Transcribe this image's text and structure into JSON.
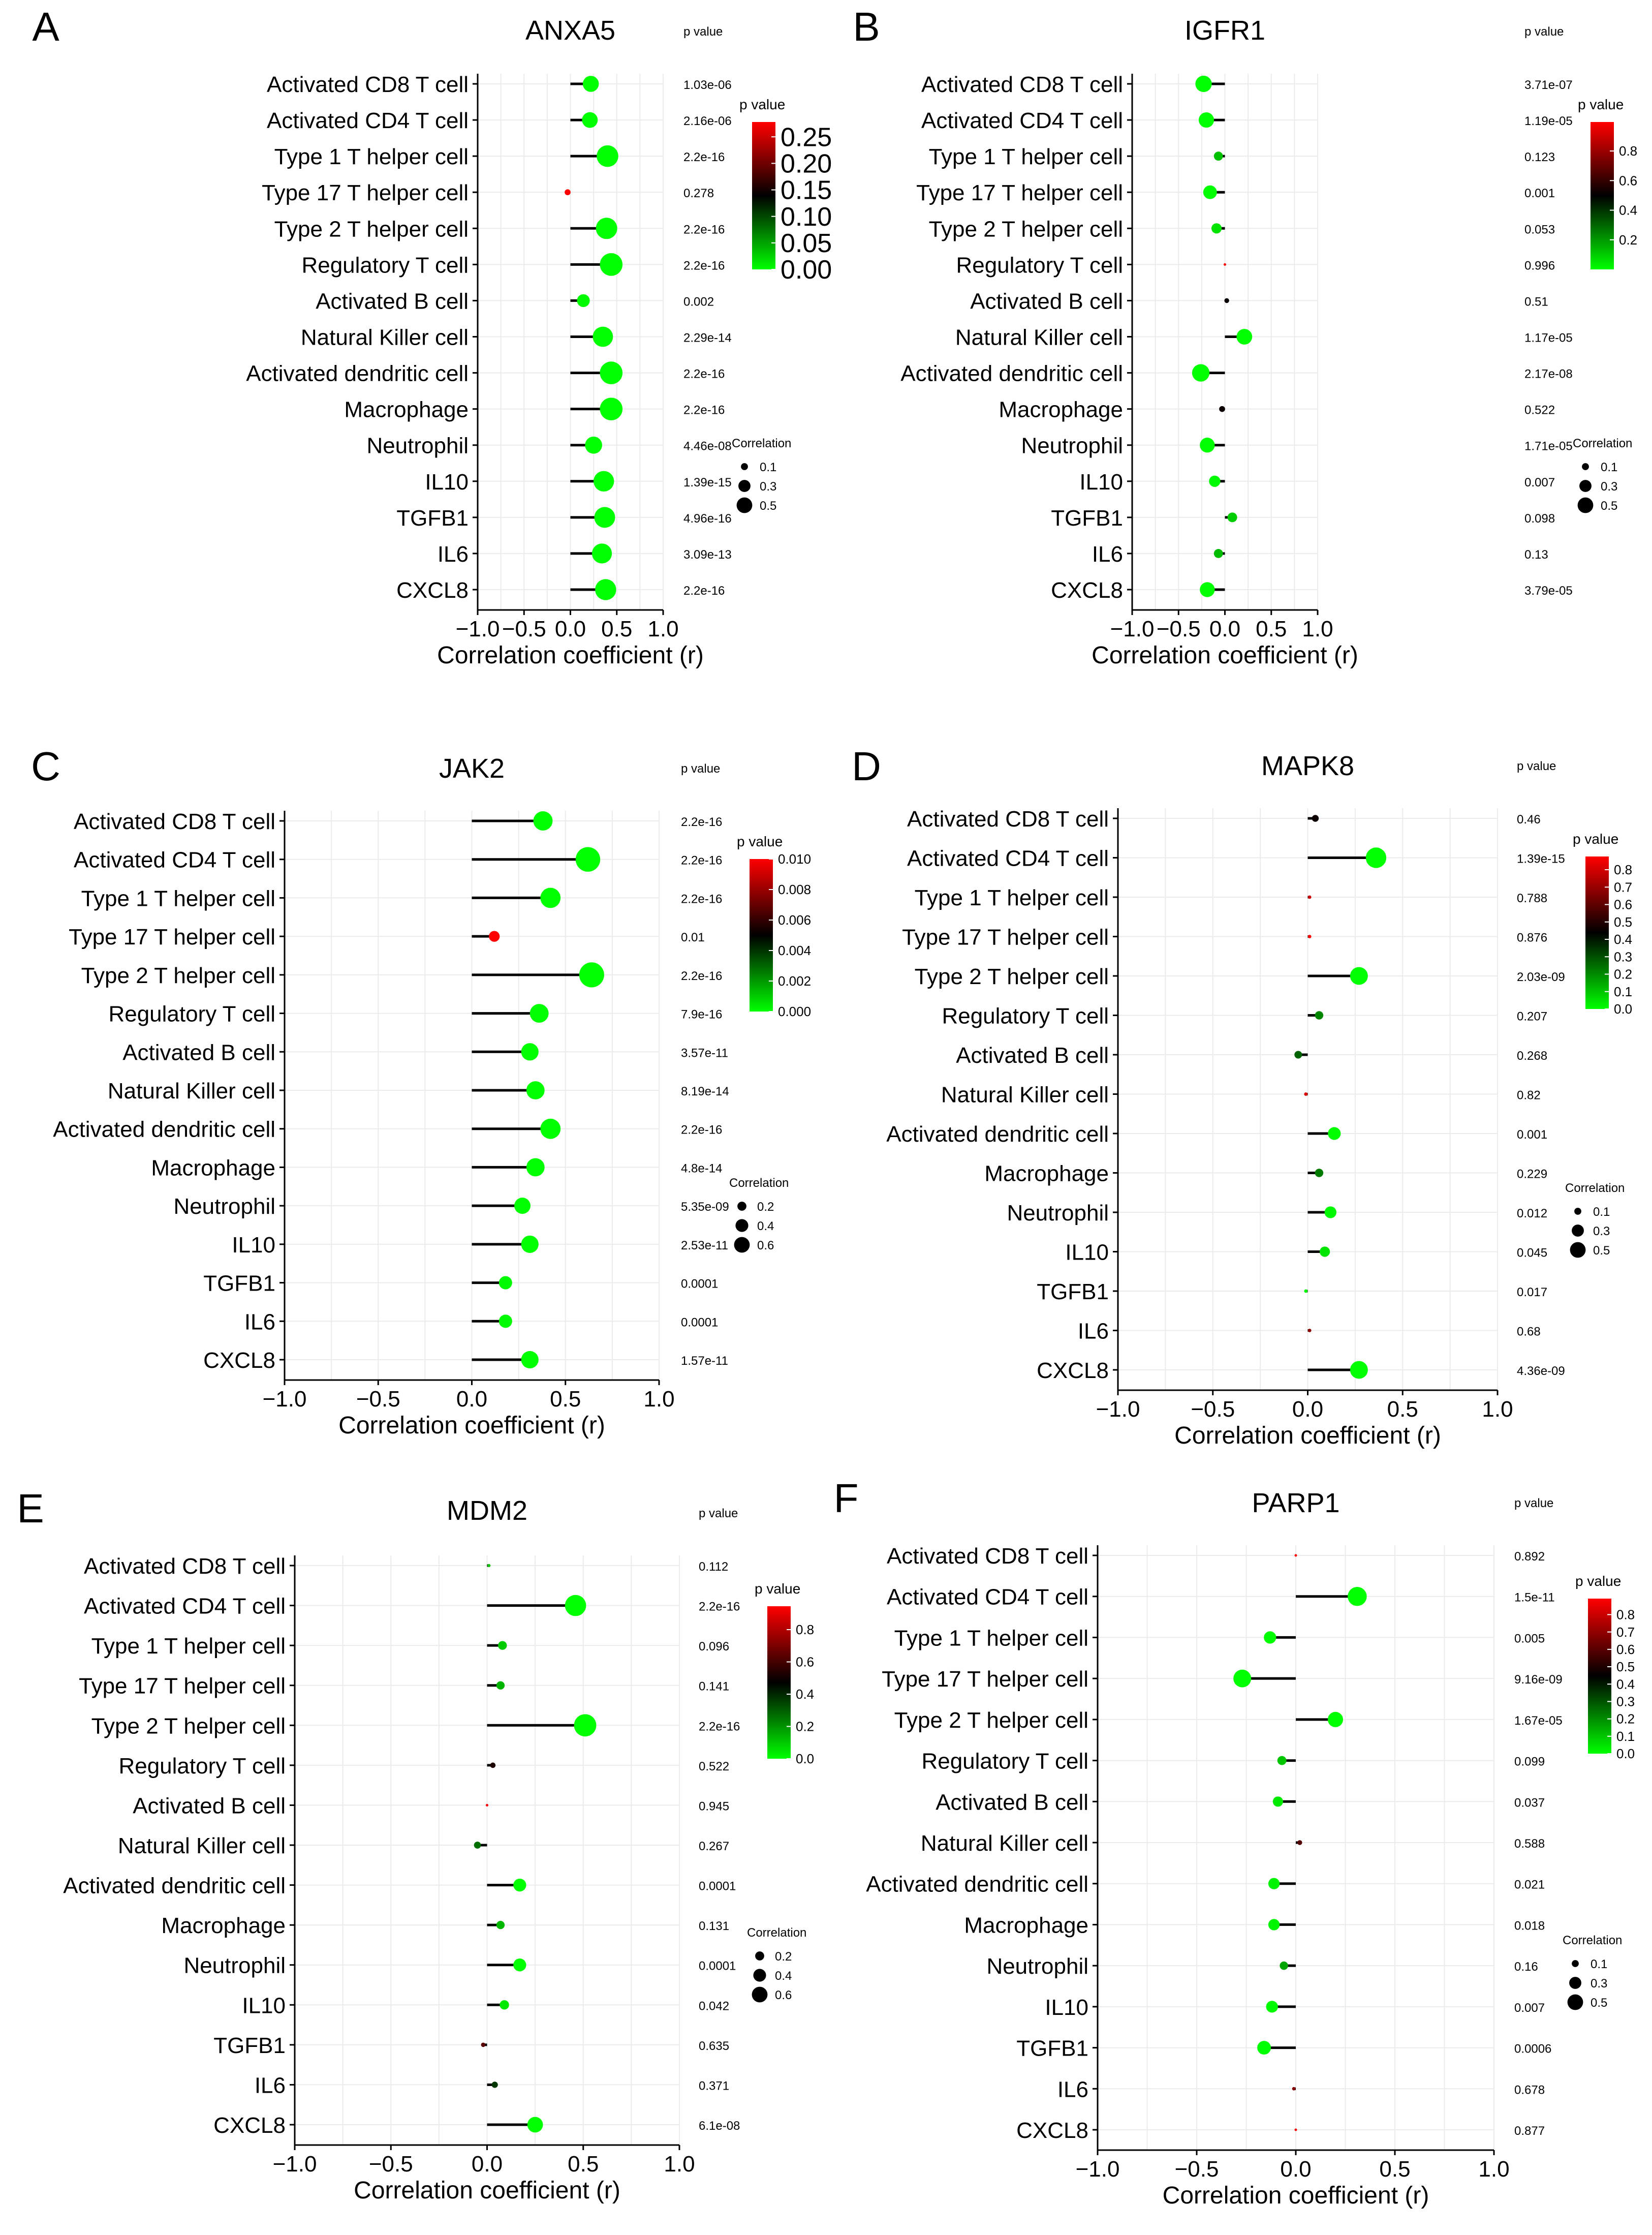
{
  "figure": {
    "categories": [
      "Activated CD8 T cell",
      "Activated CD4 T cell",
      "Type 1 T helper cell",
      "Type 17 T helper cell",
      "Type 2 T helper cell",
      "Regulatory T cell",
      "Activated B cell",
      "Natural Killer cell",
      "Activated dendritic cell",
      "Macrophage",
      "Neutrophil",
      "IL10",
      "TGFB1",
      "IL6",
      "CXCL8"
    ],
    "x_ticks": [
      "−1.0",
      "−0.5",
      "0.0",
      "0.5",
      "1.0"
    ],
    "xlabel": "Correlation coefficient (r)",
    "pvalue_header": "p value",
    "colorbar_title": "p value",
    "size_legend_title": "Correlation",
    "colors": {
      "significant": "#00e000",
      "not_significant": "#d40000",
      "mid": "#000000",
      "grid": "#ebebeb"
    }
  },
  "chart_data": [
    {
      "type": "scatter",
      "panel": "A",
      "title": "ANXA5",
      "xlabel": "Correlation coefficient (r)",
      "xlim": [
        -1.0,
        1.0
      ],
      "correlation": [
        0.22,
        0.21,
        0.4,
        -0.03,
        0.39,
        0.44,
        0.14,
        0.35,
        0.44,
        0.44,
        0.25,
        0.36,
        0.37,
        0.34,
        0.38
      ],
      "p_display": [
        "1.03e-06",
        "2.16e-06",
        "2.2e-16",
        "0.278",
        "2.2e-16",
        "2.2e-16",
        "0.002",
        "2.29e-14",
        "2.2e-16",
        "2.2e-16",
        "4.46e-08",
        "1.39e-15",
        "4.96e-16",
        "3.09e-13",
        "2.2e-16"
      ],
      "p_value": [
        1.03e-06,
        2.16e-06,
        2.2e-16,
        0.278,
        2.2e-16,
        2.2e-16,
        0.002,
        2.29e-14,
        2.2e-16,
        2.2e-16,
        4.46e-08,
        1.39e-15,
        4.96e-16,
        3.09e-13,
        2.2e-16
      ],
      "colorbar_ticks": [
        "0.25",
        "0.20",
        "0.15",
        "0.10",
        "0.05",
        "0.00"
      ],
      "colorbar_range": [
        0,
        0.278
      ],
      "size_legend": [
        "0.1",
        "0.3",
        "0.5"
      ]
    },
    {
      "type": "scatter",
      "panel": "B",
      "title": "IGFR1",
      "xlabel": "Correlation coefficient (r)",
      "xlim": [
        -1.0,
        1.0
      ],
      "correlation": [
        -0.23,
        -0.2,
        -0.07,
        -0.16,
        -0.09,
        0.0,
        0.02,
        0.21,
        -0.26,
        -0.03,
        -0.19,
        -0.11,
        0.08,
        -0.07,
        -0.19
      ],
      "p_display": [
        "3.71e-07",
        "1.19e-05",
        "0.123",
        "0.001",
        "0.053",
        "0.996",
        "0.51",
        "1.17e-05",
        "2.17e-08",
        "0.522",
        "1.71e-05",
        "0.007",
        "0.098",
        "0.13",
        "3.79e-05"
      ],
      "p_value": [
        3.71e-07,
        1.19e-05,
        0.123,
        0.001,
        0.053,
        0.996,
        0.51,
        1.17e-05,
        2.17e-08,
        0.522,
        1.71e-05,
        0.007,
        0.098,
        0.13,
        3.79e-05
      ],
      "colorbar_ticks": [
        "0.8",
        "0.6",
        "0.4",
        "0.2"
      ],
      "colorbar_range": [
        0,
        0.996
      ],
      "size_legend": [
        "0.1",
        "0.3",
        "0.5"
      ]
    },
    {
      "type": "scatter",
      "panel": "C",
      "title": "JAK2",
      "xlabel": "Correlation coefficient (r)",
      "xlim": [
        -1.0,
        1.0
      ],
      "correlation": [
        0.38,
        0.62,
        0.42,
        0.12,
        0.64,
        0.36,
        0.31,
        0.34,
        0.42,
        0.34,
        0.27,
        0.31,
        0.18,
        0.18,
        0.31
      ],
      "p_display": [
        "2.2e-16",
        "2.2e-16",
        "2.2e-16",
        "0.01",
        "2.2e-16",
        "7.9e-16",
        "3.57e-11",
        "8.19e-14",
        "2.2e-16",
        "4.8e-14",
        "5.35e-09",
        "2.53e-11",
        "0.0001",
        "0.0001",
        "1.57e-11"
      ],
      "p_value": [
        2.2e-16,
        2.2e-16,
        2.2e-16,
        0.01,
        2.2e-16,
        7.9e-16,
        3.57e-11,
        8.19e-14,
        2.2e-16,
        4.8e-14,
        5.35e-09,
        2.53e-11,
        0.0001,
        0.0001,
        1.57e-11
      ],
      "colorbar_ticks": [
        "0.010",
        "0.008",
        "0.006",
        "0.004",
        "0.002",
        "0.000"
      ],
      "colorbar_range": [
        0,
        0.01
      ],
      "size_legend": [
        "0.2",
        "0.4",
        "0.6"
      ]
    },
    {
      "type": "scatter",
      "panel": "D",
      "title": "MAPK8",
      "xlabel": "Correlation coefficient (r)",
      "xlim": [
        -1.0,
        1.0
      ],
      "correlation": [
        0.04,
        0.36,
        0.01,
        0.01,
        0.27,
        0.06,
        -0.05,
        -0.01,
        0.14,
        0.06,
        0.12,
        0.09,
        -0.01,
        0.01,
        0.27
      ],
      "p_display": [
        "0.46",
        "1.39e-15",
        "0.788",
        "0.876",
        "2.03e-09",
        "0.207",
        "0.268",
        "0.82",
        "0.001",
        "0.229",
        "0.012",
        "0.045",
        "0.017",
        "0.68",
        "4.36e-09"
      ],
      "p_value": [
        0.46,
        1.39e-15,
        0.788,
        0.876,
        2.03e-09,
        0.207,
        0.268,
        0.82,
        0.001,
        0.229,
        0.012,
        0.045,
        0.017,
        0.68,
        4.36e-09
      ],
      "colorbar_ticks": [
        "0.8",
        "0.7",
        "0.6",
        "0.5",
        "0.4",
        "0.3",
        "0.2",
        "0.1",
        "0.0"
      ],
      "colorbar_range": [
        0,
        0.876
      ],
      "size_legend": [
        "0.1",
        "0.3",
        "0.5"
      ]
    },
    {
      "type": "scatter",
      "panel": "E",
      "title": "MDM2",
      "xlabel": "Correlation coefficient (r)",
      "xlim": [
        -1.0,
        1.0
      ],
      "correlation": [
        0.01,
        0.46,
        0.08,
        0.07,
        0.51,
        0.03,
        0.0,
        -0.05,
        0.17,
        0.07,
        0.17,
        0.09,
        -0.02,
        0.04,
        0.25
      ],
      "p_display": [
        "0.112",
        "2.2e-16",
        "0.096",
        "0.141",
        "2.2e-16",
        "0.522",
        "0.945",
        "0.267",
        "0.0001",
        "0.131",
        "0.0001",
        "0.042",
        "0.635",
        "0.371",
        "6.1e-08"
      ],
      "p_value": [
        0.112,
        2.2e-16,
        0.096,
        0.141,
        2.2e-16,
        0.522,
        0.945,
        0.267,
        0.0001,
        0.131,
        0.0001,
        0.042,
        0.635,
        0.371,
        6.1e-08
      ],
      "colorbar_ticks": [
        "0.8",
        "0.6",
        "0.4",
        "0.2",
        "0.0"
      ],
      "colorbar_range": [
        0,
        0.945
      ],
      "size_legend": [
        "0.2",
        "0.4",
        "0.6"
      ]
    },
    {
      "type": "scatter",
      "panel": "F",
      "title": "PARP1",
      "xlabel": "Correlation coefficient (r)",
      "xlim": [
        -1.0,
        1.0
      ],
      "correlation": [
        0.0,
        0.31,
        -0.13,
        -0.27,
        0.2,
        -0.07,
        -0.09,
        0.02,
        -0.11,
        -0.11,
        -0.06,
        -0.12,
        -0.16,
        -0.01,
        0.0
      ],
      "p_display": [
        "0.892",
        "1.5e-11",
        "0.005",
        "9.16e-09",
        "1.67e-05",
        "0.099",
        "0.037",
        "0.588",
        "0.021",
        "0.018",
        "0.16",
        "0.007",
        "0.0006",
        "0.678",
        "0.877"
      ],
      "p_value": [
        0.892,
        1.5e-11,
        0.005,
        9.16e-09,
        1.67e-05,
        0.099,
        0.037,
        0.588,
        0.021,
        0.018,
        0.16,
        0.007,
        0.0006,
        0.678,
        0.877
      ],
      "colorbar_ticks": [
        "0.8",
        "0.7",
        "0.6",
        "0.5",
        "0.4",
        "0.3",
        "0.2",
        "0.1",
        "0.0"
      ],
      "colorbar_range": [
        0,
        0.892
      ],
      "size_legend": [
        "0.1",
        "0.3",
        "0.5"
      ]
    }
  ]
}
